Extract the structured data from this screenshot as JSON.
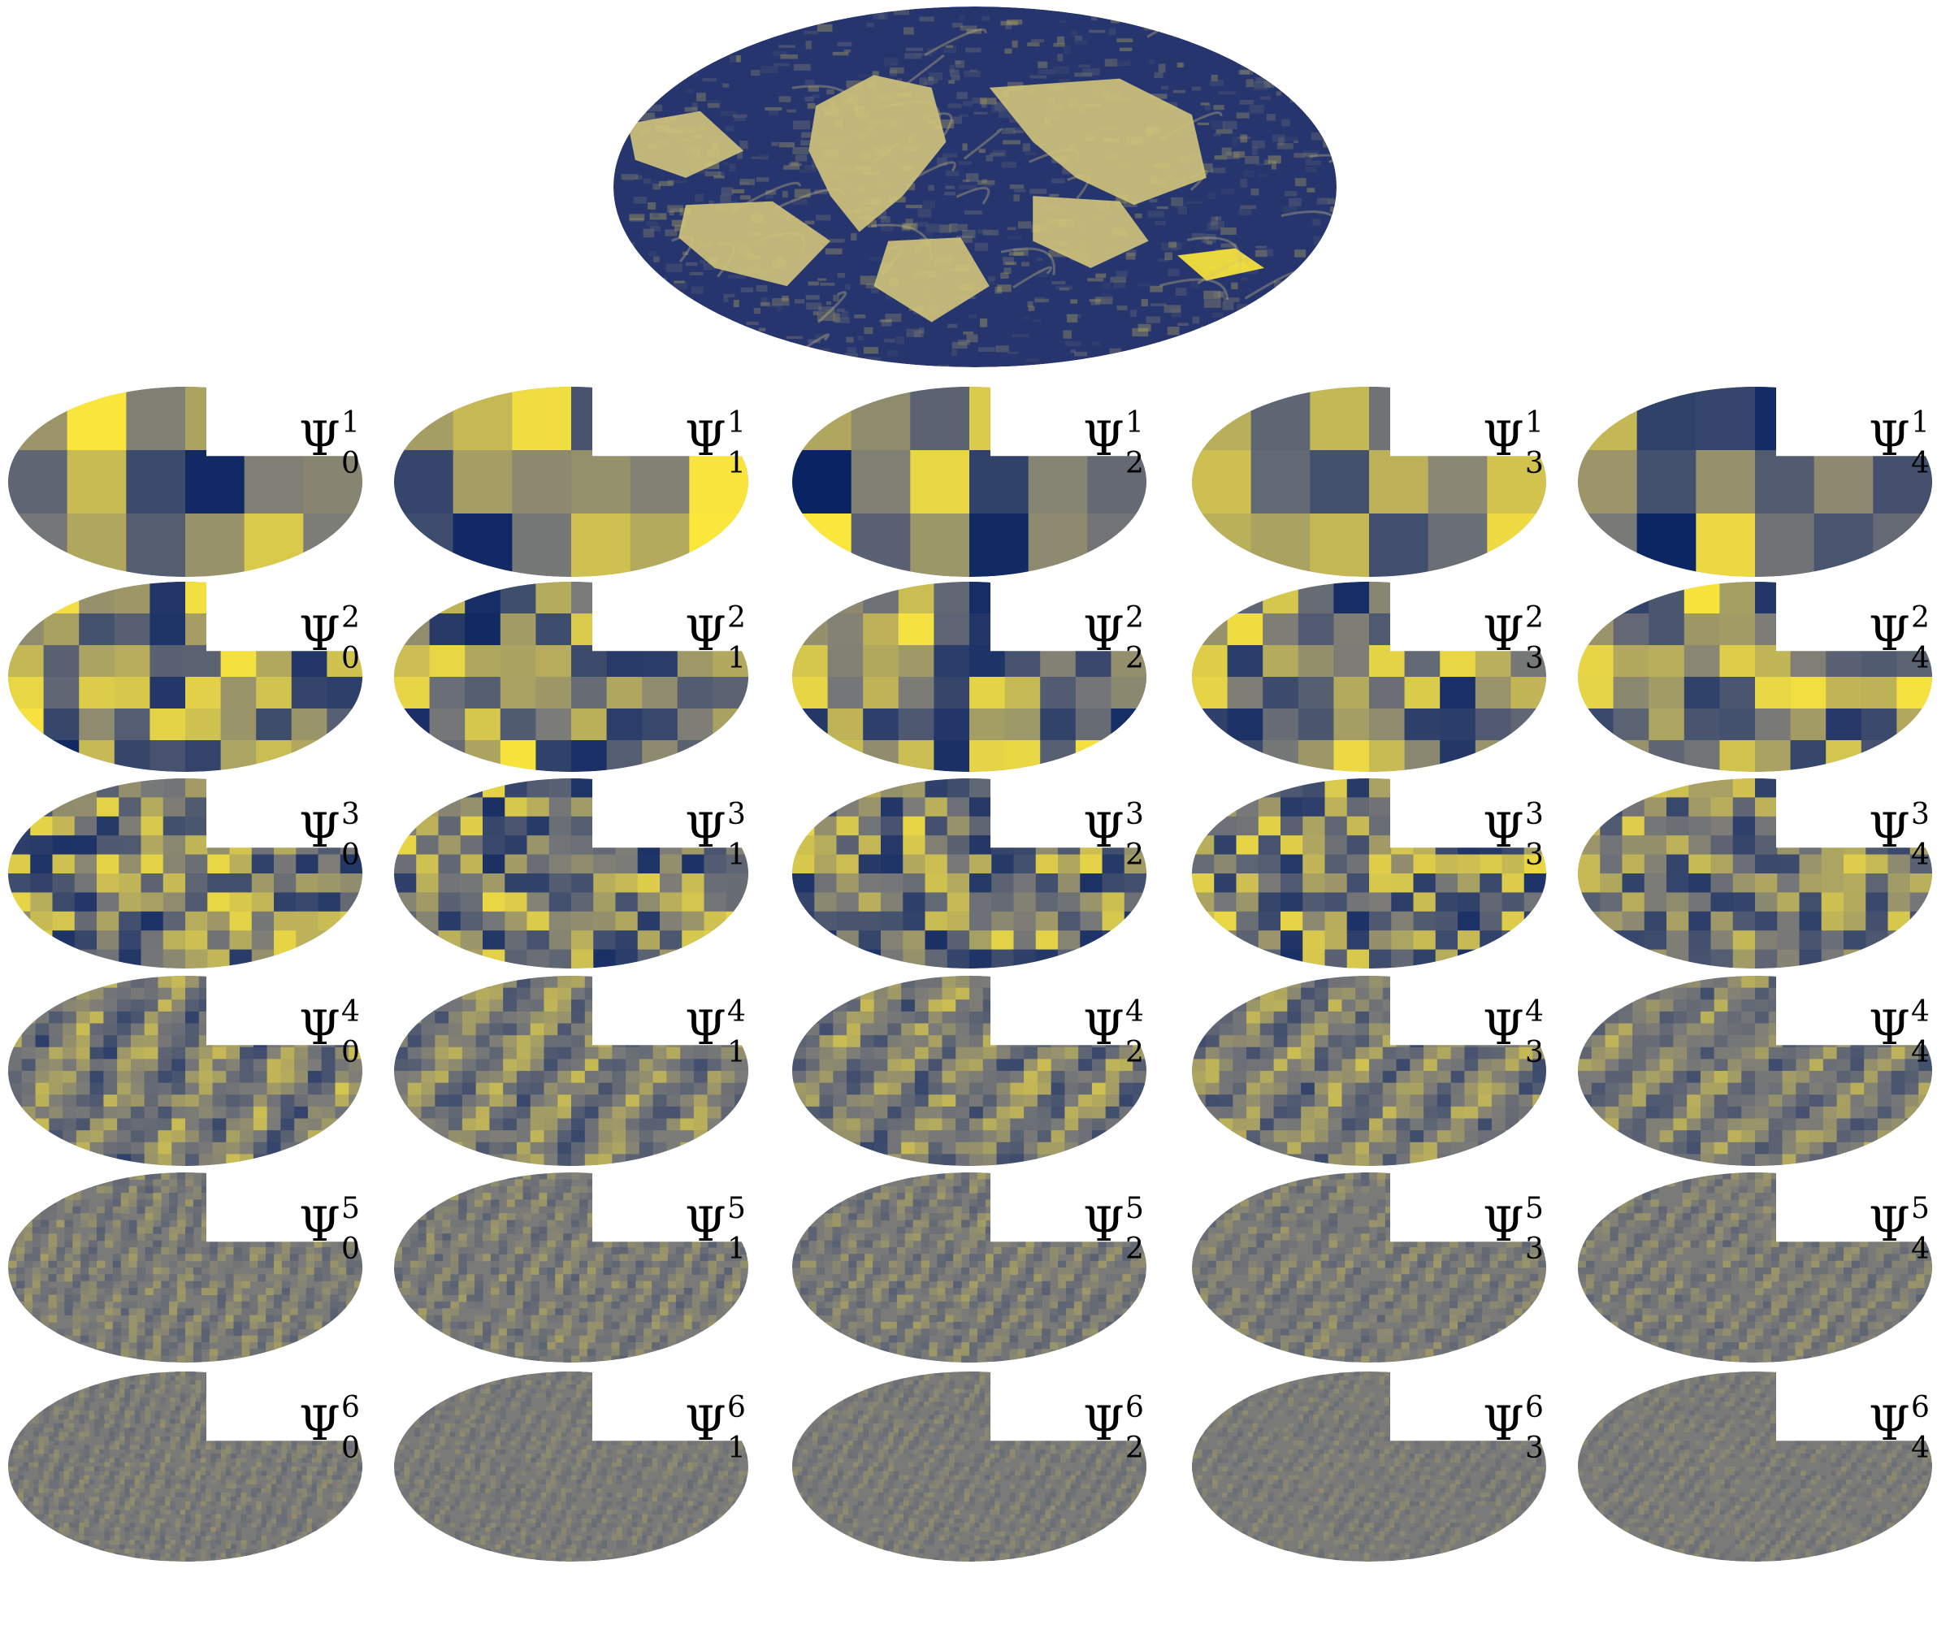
{
  "figure": {
    "symbol": "Ψ",
    "colors": {
      "low": "#0a2463",
      "mid": "#7a7a78",
      "high": "#ffe93a",
      "land": "#d2c47a",
      "ocean": "#27356f"
    },
    "levels": [
      1,
      2,
      3,
      4,
      5,
      6
    ],
    "orientations": [
      0,
      1,
      2,
      3,
      4
    ],
    "panels": [
      {
        "level": "1",
        "orientation": "0",
        "pattern": "blocky",
        "contrast": 1.0
      },
      {
        "level": "1",
        "orientation": "1",
        "pattern": "blocky",
        "contrast": 1.0
      },
      {
        "level": "1",
        "orientation": "2",
        "pattern": "blocky",
        "contrast": 1.0
      },
      {
        "level": "1",
        "orientation": "3",
        "pattern": "blocky",
        "contrast": 1.0
      },
      {
        "level": "1",
        "orientation": "4",
        "pattern": "blocky",
        "contrast": 1.0
      },
      {
        "level": "2",
        "orientation": "0",
        "pattern": "blocky",
        "contrast": 0.95
      },
      {
        "level": "2",
        "orientation": "1",
        "pattern": "blocky",
        "contrast": 0.95
      },
      {
        "level": "2",
        "orientation": "2",
        "pattern": "blocky",
        "contrast": 0.95
      },
      {
        "level": "2",
        "orientation": "3",
        "pattern": "blocky",
        "contrast": 0.95
      },
      {
        "level": "2",
        "orientation": "4",
        "pattern": "blocky",
        "contrast": 0.95
      },
      {
        "level": "3",
        "orientation": "0",
        "pattern": "blocky",
        "contrast": 0.85
      },
      {
        "level": "3",
        "orientation": "1",
        "pattern": "blocky",
        "contrast": 0.85
      },
      {
        "level": "3",
        "orientation": "2",
        "pattern": "blocky",
        "contrast": 0.85
      },
      {
        "level": "3",
        "orientation": "3",
        "pattern": "blocky",
        "contrast": 0.85
      },
      {
        "level": "3",
        "orientation": "4",
        "pattern": "blocky",
        "contrast": 0.75
      },
      {
        "level": "4",
        "orientation": "0",
        "pattern": "streaky",
        "contrast": 0.7
      },
      {
        "level": "4",
        "orientation": "1",
        "pattern": "streaky",
        "contrast": 0.6
      },
      {
        "level": "4",
        "orientation": "2",
        "pattern": "streaky",
        "contrast": 0.65
      },
      {
        "level": "4",
        "orientation": "3",
        "pattern": "streaky",
        "contrast": 0.65
      },
      {
        "level": "4",
        "orientation": "4",
        "pattern": "streaky",
        "contrast": 0.55
      },
      {
        "level": "5",
        "orientation": "0",
        "pattern": "fine",
        "contrast": 0.4
      },
      {
        "level": "5",
        "orientation": "1",
        "pattern": "fine",
        "contrast": 0.4
      },
      {
        "level": "5",
        "orientation": "2",
        "pattern": "fine",
        "contrast": 0.4
      },
      {
        "level": "5",
        "orientation": "3",
        "pattern": "fine",
        "contrast": 0.35
      },
      {
        "level": "5",
        "orientation": "4",
        "pattern": "fine",
        "contrast": 0.35
      },
      {
        "level": "6",
        "orientation": "0",
        "pattern": "finest",
        "contrast": 0.25
      },
      {
        "level": "6",
        "orientation": "1",
        "pattern": "finest",
        "contrast": 0.22
      },
      {
        "level": "6",
        "orientation": "2",
        "pattern": "finest",
        "contrast": 0.22
      },
      {
        "level": "6",
        "orientation": "3",
        "pattern": "finest",
        "contrast": 0.2
      },
      {
        "level": "6",
        "orientation": "4",
        "pattern": "finest",
        "contrast": 0.2
      }
    ]
  }
}
